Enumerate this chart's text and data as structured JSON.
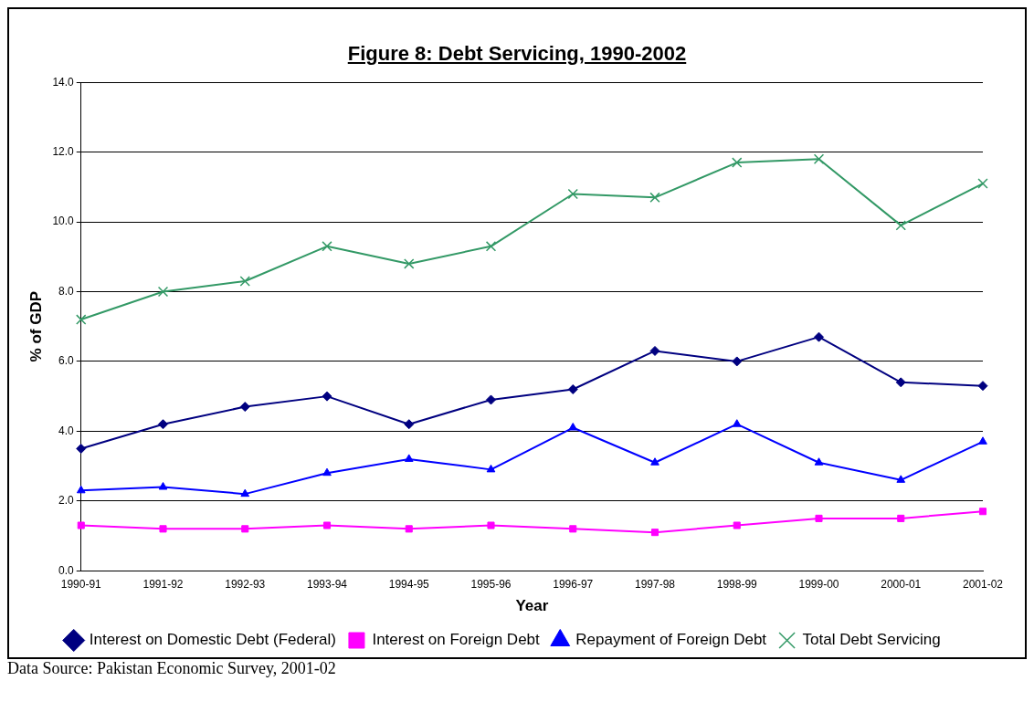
{
  "chart_data": {
    "type": "line",
    "title": "Figure 8: Debt Servicing, 1990-2002",
    "xlabel": "Year",
    "ylabel": "% of GDP",
    "categories": [
      "1990-91",
      "1991-92",
      "1992-93",
      "1993-94",
      "1994-95",
      "1995-96",
      "1996-97",
      "1997-98",
      "1998-99",
      "1999-00",
      "2000-01",
      "2001-02"
    ],
    "series": [
      {
        "name": "Interest on Domestic Debt (Federal)",
        "color": "#000080",
        "marker": "diamond",
        "values": [
          3.5,
          4.2,
          4.7,
          5.0,
          4.2,
          4.9,
          5.2,
          6.3,
          6.0,
          6.7,
          5.4,
          5.3
        ]
      },
      {
        "name": "Interest on Foreign Debt",
        "color": "#ff00ff",
        "marker": "square",
        "values": [
          1.3,
          1.2,
          1.2,
          1.3,
          1.2,
          1.3,
          1.2,
          1.1,
          1.3,
          1.5,
          1.5,
          1.7
        ]
      },
      {
        "name": "Repayment of Foreign Debt",
        "color": "#0000ff",
        "marker": "triangle",
        "values": [
          2.3,
          2.4,
          2.2,
          2.8,
          3.2,
          2.9,
          4.1,
          3.1,
          4.2,
          3.1,
          2.6,
          3.7
        ]
      },
      {
        "name": "Total Debt Servicing",
        "color": "#339966",
        "marker": "cross",
        "values": [
          7.2,
          8.0,
          8.3,
          9.3,
          8.8,
          9.3,
          10.8,
          10.7,
          11.7,
          11.8,
          9.9,
          11.1
        ]
      }
    ],
    "ylim": [
      0,
      14
    ],
    "yticks": [
      {
        "value": 0,
        "label": "0.0"
      },
      {
        "value": 2,
        "label": "2.0"
      },
      {
        "value": 4,
        "label": "4.0"
      },
      {
        "value": 6,
        "label": "6.0"
      },
      {
        "value": 8,
        "label": "8.0"
      },
      {
        "value": 10,
        "label": "10.0"
      },
      {
        "value": 12,
        "label": "12.0"
      },
      {
        "value": 14,
        "label": "14.0"
      }
    ],
    "grid": "y",
    "legend": "bottom",
    "line_style": "solid",
    "annotations": [
      "Data Source: Pakistan Economic Survey, 2001-02"
    ]
  }
}
